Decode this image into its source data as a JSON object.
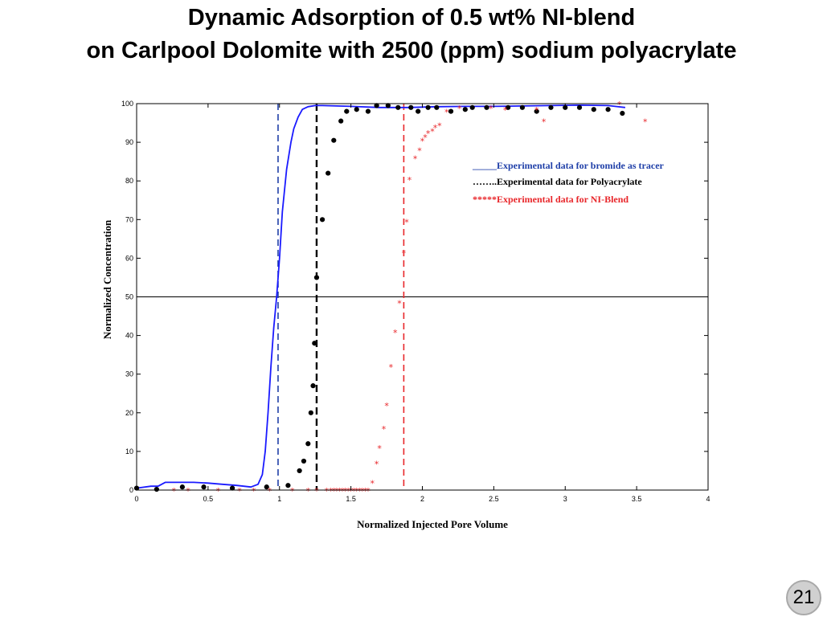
{
  "slide": {
    "title_line1": "Dynamic Adsorption of 0.5 wt% NI-blend",
    "title_line2": "on Carlpool Dolomite with 2500 (ppm) sodium polyacrylate",
    "page_number": "21"
  },
  "chart_data": {
    "type": "scatter",
    "title": "",
    "xlabel": "Normalized Injected Pore Volume",
    "ylabel": "Normalized Concentration",
    "xlim": [
      0,
      4
    ],
    "ylim": [
      0,
      100
    ],
    "x_ticks": [
      "0",
      "0.5",
      "1",
      "1.5",
      "2",
      "2.5",
      "3",
      "3.5",
      "4"
    ],
    "y_ticks": [
      "0",
      "10",
      "20",
      "30",
      "40",
      "50",
      "60",
      "70",
      "80",
      "90",
      "100"
    ],
    "grid": false,
    "legend_position": "upper-right",
    "reference_lines": {
      "horizontal_y": 50,
      "vertical_x": [
        {
          "x": 0.99,
          "color": "#1f3fa8",
          "style": "dashed"
        },
        {
          "x": 1.26,
          "color": "#000000",
          "style": "dashed"
        },
        {
          "x": 1.87,
          "color": "#e8262a",
          "style": "dashed"
        }
      ]
    },
    "legend": [
      {
        "prefix": "_____",
        "label": "Experimental data for bromide as tracer",
        "color": "#1f3fa8"
      },
      {
        "prefix": "……..",
        "label": "Experimental data for Polyacrylate",
        "color": "#000000"
      },
      {
        "prefix": "*****",
        "label": "Experimental data for NI-Blend",
        "color": "#e8262a"
      }
    ],
    "series": [
      {
        "name": "Experimental data for bromide as tracer",
        "marker": "line",
        "color": "#1a1aff",
        "x": [
          0,
          0.1,
          0.15,
          0.2,
          0.3,
          0.4,
          0.5,
          0.6,
          0.7,
          0.8,
          0.85,
          0.88,
          0.9,
          0.92,
          0.94,
          0.96,
          0.98,
          1.0,
          1.02,
          1.05,
          1.08,
          1.1,
          1.13,
          1.16,
          1.2,
          1.25,
          1.3,
          1.5,
          1.7,
          1.9,
          2.1,
          2.3,
          2.5,
          2.7,
          2.9,
          3.1,
          3.3,
          3.42
        ],
        "y": [
          0.5,
          1,
          1,
          2,
          2,
          2,
          1.8,
          1.5,
          1.2,
          0.8,
          1.5,
          4,
          10,
          20,
          32,
          42,
          50,
          60,
          72,
          83,
          90,
          93.5,
          96.5,
          98.5,
          99.2,
          99.5,
          99.5,
          99.3,
          99,
          99,
          99.2,
          99.3,
          99.3,
          99.4,
          99.5,
          99.6,
          99.5,
          99
        ]
      },
      {
        "name": "Experimental data for Polyacrylate",
        "marker": "dot",
        "color": "#000000",
        "x": [
          0,
          0.14,
          0.32,
          0.47,
          0.67,
          0.91,
          1.06,
          1.14,
          1.17,
          1.2,
          1.22,
          1.235,
          1.245,
          1.26,
          1.3,
          1.34,
          1.38,
          1.43,
          1.47,
          1.54,
          1.62,
          1.68,
          1.76,
          1.83,
          1.92,
          1.97,
          2.04,
          2.1,
          2.2,
          2.3,
          2.35,
          2.45,
          2.6,
          2.7,
          2.8,
          2.9,
          3.0,
          3.1,
          3.2,
          3.3,
          3.4
        ],
        "y": [
          0.5,
          0.2,
          0.8,
          0.8,
          0.5,
          0.8,
          1.2,
          5,
          7.5,
          12,
          20,
          27,
          38,
          55,
          70,
          82,
          90.5,
          95.5,
          98,
          98.5,
          98,
          99.5,
          99.5,
          99,
          99,
          98,
          99,
          99,
          98,
          98.5,
          99,
          99,
          99,
          99,
          98,
          99,
          99,
          99,
          98.5,
          98.5,
          97.5
        ]
      },
      {
        "name": "Experimental data for NI-Blend",
        "marker": "star",
        "color": "#e8262a",
        "x": [
          0.26,
          0.36,
          0.57,
          0.72,
          0.82,
          0.93,
          1.09,
          1.2,
          1.26,
          1.33,
          1.36,
          1.38,
          1.4,
          1.42,
          1.44,
          1.46,
          1.48,
          1.5,
          1.52,
          1.54,
          1.56,
          1.58,
          1.6,
          1.62,
          1.65,
          1.68,
          1.7,
          1.73,
          1.75,
          1.78,
          1.81,
          1.84,
          1.87,
          1.89,
          1.91,
          1.95,
          1.98,
          2.0,
          2.02,
          2.04,
          2.07,
          2.09,
          2.12,
          2.17,
          2.26,
          2.48,
          2.58,
          2.8,
          2.85,
          3.38,
          3.56
        ],
        "y": [
          0,
          0,
          0,
          0,
          0,
          0,
          0,
          0,
          0,
          0,
          0,
          0,
          0,
          0,
          0,
          0,
          0,
          0,
          0,
          0,
          0,
          0,
          0,
          0,
          2,
          7,
          11,
          16,
          22,
          32,
          41,
          48.5,
          61.5,
          69.5,
          80.5,
          86,
          88,
          90.5,
          91.5,
          92.5,
          93,
          94,
          94.5,
          98,
          99,
          99,
          98.5,
          98.5,
          95.5,
          100,
          95.5
        ]
      }
    ]
  }
}
